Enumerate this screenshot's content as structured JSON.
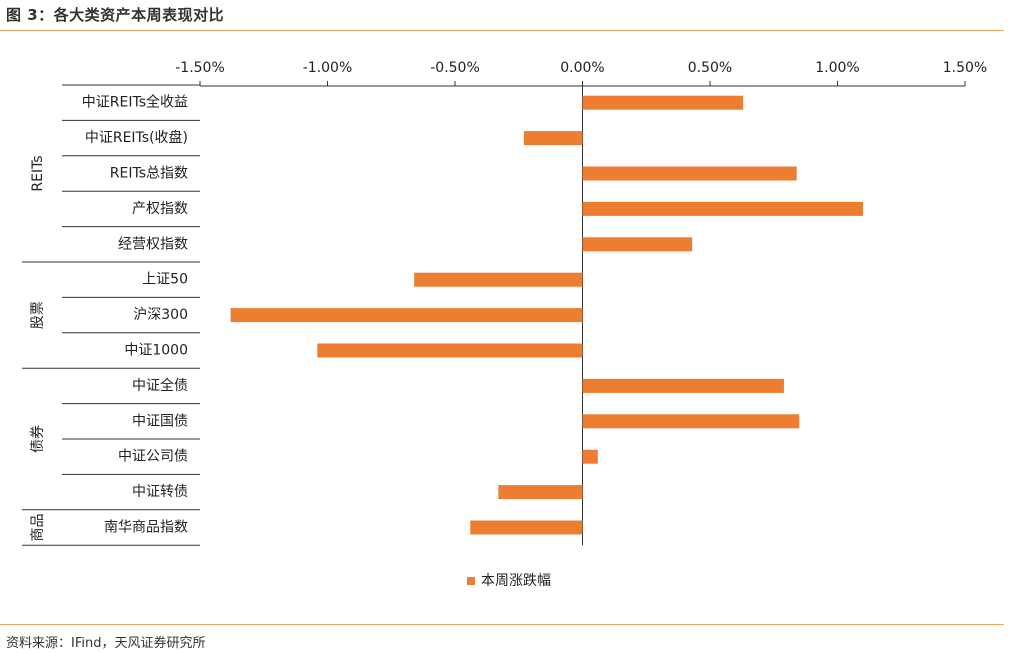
{
  "figure_title": "图 3：各大类资产本周表现对比",
  "source_note": "资料来源：IFind，天风证券研究所",
  "colors": {
    "bar": "#ed7d31",
    "axis": "#333333",
    "rule": "#f0a35e"
  },
  "chart_data": {
    "type": "bar",
    "orientation": "horizontal",
    "title": "",
    "xlabel": "",
    "ylabel": "",
    "xlim": [
      -1.5,
      1.5
    ],
    "x_ticks": [
      -1.5,
      -1.0,
      -0.5,
      0.0,
      0.5,
      1.0,
      1.5
    ],
    "x_tick_labels": [
      "-1.50%",
      "-1.00%",
      "-0.50%",
      "0.00%",
      "0.50%",
      "1.00%",
      "1.50%"
    ],
    "tick_position": "top",
    "grid": false,
    "legend_position": "bottom-center",
    "categories": [
      "中证REITs全收益",
      "中证REITs(收盘)",
      "REITs总指数",
      "产权指数",
      "经营权指数",
      "上证50",
      "沪深300",
      "中证1000",
      "中证全债",
      "中证国债",
      "中证公司债",
      "中证转债",
      "南华商品指数"
    ],
    "groups": [
      {
        "label": "REITs",
        "count": 5
      },
      {
        "label": "股票",
        "count": 3
      },
      {
        "label": "债券",
        "count": 4
      },
      {
        "label": "商品",
        "count": 1
      }
    ],
    "series": [
      {
        "name": "本周涨跌幅",
        "values": [
          0.63,
          -0.23,
          0.84,
          1.1,
          0.43,
          -0.66,
          -1.38,
          -1.04,
          0.79,
          0.85,
          0.06,
          -0.33,
          -0.44
        ]
      }
    ]
  }
}
